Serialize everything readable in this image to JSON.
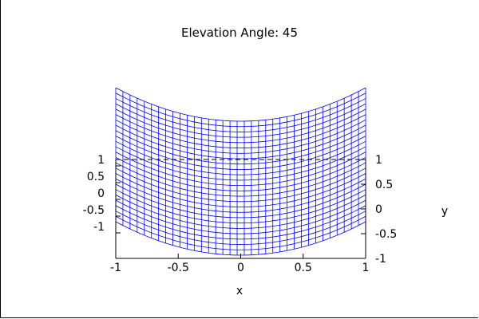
{
  "chart_data": {
    "type": "surface-3d",
    "title": "Elevation Angle: 45",
    "xlabel": "x",
    "ylabel": "y",
    "xlim": [
      -1,
      1
    ],
    "ylim": [
      -1,
      1
    ],
    "zlim": [
      -1,
      1
    ],
    "x_ticks": [
      "-1",
      "-0.5",
      "0",
      "0.5",
      "1"
    ],
    "y_ticks": [
      "-1",
      "-0.5",
      "0",
      "0.5",
      "1"
    ],
    "z_ticks": [
      "1",
      "0.5",
      "0",
      "-0.5",
      "-1"
    ],
    "elevation": 45,
    "surface": {
      "color": "#0000ff",
      "x_grid_count": 36,
      "y_grid_count": 26,
      "z_function": "x^2 + y"
    }
  }
}
